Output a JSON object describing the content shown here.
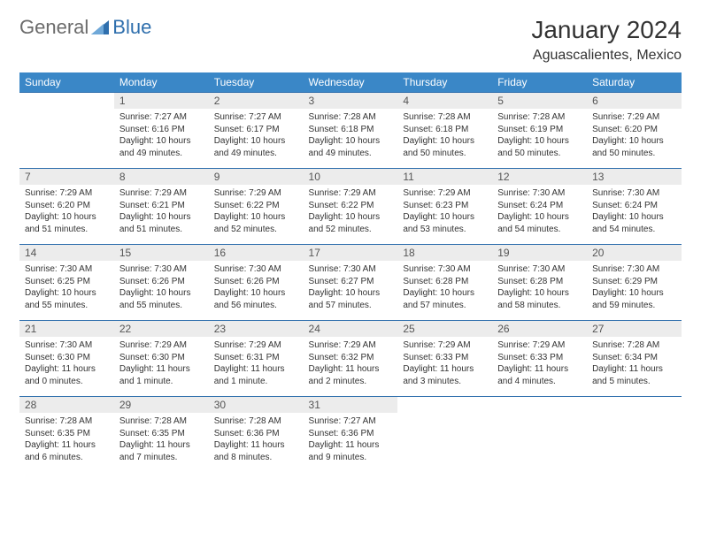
{
  "logo": {
    "general": "General",
    "blue": "Blue"
  },
  "title": "January 2024",
  "location": "Aguascalientes, Mexico",
  "colors": {
    "header_bg": "#3a87c7",
    "header_text": "#ffffff",
    "row_border": "#2f6fad",
    "daynum_bg": "#ececec",
    "logo_gray": "#6b6b6b",
    "logo_blue": "#2f6fad"
  },
  "typography": {
    "title_fontsize": 28,
    "location_fontsize": 16,
    "dayheader_fontsize": 12,
    "daynum_fontsize": 12,
    "celltext_fontsize": 10
  },
  "day_headers": [
    "Sunday",
    "Monday",
    "Tuesday",
    "Wednesday",
    "Thursday",
    "Friday",
    "Saturday"
  ],
  "weeks": [
    [
      {
        "n": "",
        "sr": "",
        "ss": "",
        "dl": ""
      },
      {
        "n": "1",
        "sr": "Sunrise: 7:27 AM",
        "ss": "Sunset: 6:16 PM",
        "dl": "Daylight: 10 hours and 49 minutes."
      },
      {
        "n": "2",
        "sr": "Sunrise: 7:27 AM",
        "ss": "Sunset: 6:17 PM",
        "dl": "Daylight: 10 hours and 49 minutes."
      },
      {
        "n": "3",
        "sr": "Sunrise: 7:28 AM",
        "ss": "Sunset: 6:18 PM",
        "dl": "Daylight: 10 hours and 49 minutes."
      },
      {
        "n": "4",
        "sr": "Sunrise: 7:28 AM",
        "ss": "Sunset: 6:18 PM",
        "dl": "Daylight: 10 hours and 50 minutes."
      },
      {
        "n": "5",
        "sr": "Sunrise: 7:28 AM",
        "ss": "Sunset: 6:19 PM",
        "dl": "Daylight: 10 hours and 50 minutes."
      },
      {
        "n": "6",
        "sr": "Sunrise: 7:29 AM",
        "ss": "Sunset: 6:20 PM",
        "dl": "Daylight: 10 hours and 50 minutes."
      }
    ],
    [
      {
        "n": "7",
        "sr": "Sunrise: 7:29 AM",
        "ss": "Sunset: 6:20 PM",
        "dl": "Daylight: 10 hours and 51 minutes."
      },
      {
        "n": "8",
        "sr": "Sunrise: 7:29 AM",
        "ss": "Sunset: 6:21 PM",
        "dl": "Daylight: 10 hours and 51 minutes."
      },
      {
        "n": "9",
        "sr": "Sunrise: 7:29 AM",
        "ss": "Sunset: 6:22 PM",
        "dl": "Daylight: 10 hours and 52 minutes."
      },
      {
        "n": "10",
        "sr": "Sunrise: 7:29 AM",
        "ss": "Sunset: 6:22 PM",
        "dl": "Daylight: 10 hours and 52 minutes."
      },
      {
        "n": "11",
        "sr": "Sunrise: 7:29 AM",
        "ss": "Sunset: 6:23 PM",
        "dl": "Daylight: 10 hours and 53 minutes."
      },
      {
        "n": "12",
        "sr": "Sunrise: 7:30 AM",
        "ss": "Sunset: 6:24 PM",
        "dl": "Daylight: 10 hours and 54 minutes."
      },
      {
        "n": "13",
        "sr": "Sunrise: 7:30 AM",
        "ss": "Sunset: 6:24 PM",
        "dl": "Daylight: 10 hours and 54 minutes."
      }
    ],
    [
      {
        "n": "14",
        "sr": "Sunrise: 7:30 AM",
        "ss": "Sunset: 6:25 PM",
        "dl": "Daylight: 10 hours and 55 minutes."
      },
      {
        "n": "15",
        "sr": "Sunrise: 7:30 AM",
        "ss": "Sunset: 6:26 PM",
        "dl": "Daylight: 10 hours and 55 minutes."
      },
      {
        "n": "16",
        "sr": "Sunrise: 7:30 AM",
        "ss": "Sunset: 6:26 PM",
        "dl": "Daylight: 10 hours and 56 minutes."
      },
      {
        "n": "17",
        "sr": "Sunrise: 7:30 AM",
        "ss": "Sunset: 6:27 PM",
        "dl": "Daylight: 10 hours and 57 minutes."
      },
      {
        "n": "18",
        "sr": "Sunrise: 7:30 AM",
        "ss": "Sunset: 6:28 PM",
        "dl": "Daylight: 10 hours and 57 minutes."
      },
      {
        "n": "19",
        "sr": "Sunrise: 7:30 AM",
        "ss": "Sunset: 6:28 PM",
        "dl": "Daylight: 10 hours and 58 minutes."
      },
      {
        "n": "20",
        "sr": "Sunrise: 7:30 AM",
        "ss": "Sunset: 6:29 PM",
        "dl": "Daylight: 10 hours and 59 minutes."
      }
    ],
    [
      {
        "n": "21",
        "sr": "Sunrise: 7:30 AM",
        "ss": "Sunset: 6:30 PM",
        "dl": "Daylight: 11 hours and 0 minutes."
      },
      {
        "n": "22",
        "sr": "Sunrise: 7:29 AM",
        "ss": "Sunset: 6:30 PM",
        "dl": "Daylight: 11 hours and 1 minute."
      },
      {
        "n": "23",
        "sr": "Sunrise: 7:29 AM",
        "ss": "Sunset: 6:31 PM",
        "dl": "Daylight: 11 hours and 1 minute."
      },
      {
        "n": "24",
        "sr": "Sunrise: 7:29 AM",
        "ss": "Sunset: 6:32 PM",
        "dl": "Daylight: 11 hours and 2 minutes."
      },
      {
        "n": "25",
        "sr": "Sunrise: 7:29 AM",
        "ss": "Sunset: 6:33 PM",
        "dl": "Daylight: 11 hours and 3 minutes."
      },
      {
        "n": "26",
        "sr": "Sunrise: 7:29 AM",
        "ss": "Sunset: 6:33 PM",
        "dl": "Daylight: 11 hours and 4 minutes."
      },
      {
        "n": "27",
        "sr": "Sunrise: 7:28 AM",
        "ss": "Sunset: 6:34 PM",
        "dl": "Daylight: 11 hours and 5 minutes."
      }
    ],
    [
      {
        "n": "28",
        "sr": "Sunrise: 7:28 AM",
        "ss": "Sunset: 6:35 PM",
        "dl": "Daylight: 11 hours and 6 minutes."
      },
      {
        "n": "29",
        "sr": "Sunrise: 7:28 AM",
        "ss": "Sunset: 6:35 PM",
        "dl": "Daylight: 11 hours and 7 minutes."
      },
      {
        "n": "30",
        "sr": "Sunrise: 7:28 AM",
        "ss": "Sunset: 6:36 PM",
        "dl": "Daylight: 11 hours and 8 minutes."
      },
      {
        "n": "31",
        "sr": "Sunrise: 7:27 AM",
        "ss": "Sunset: 6:36 PM",
        "dl": "Daylight: 11 hours and 9 minutes."
      },
      {
        "n": "",
        "sr": "",
        "ss": "",
        "dl": ""
      },
      {
        "n": "",
        "sr": "",
        "ss": "",
        "dl": ""
      },
      {
        "n": "",
        "sr": "",
        "ss": "",
        "dl": ""
      }
    ]
  ]
}
